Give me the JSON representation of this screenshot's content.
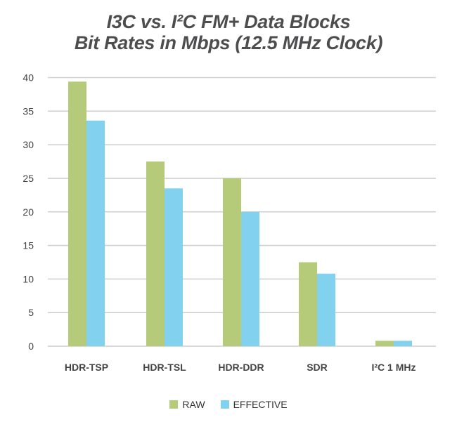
{
  "chart_data": {
    "type": "bar",
    "title": [
      "I3C vs. I²C FM+ Data Blocks",
      "Bit Rates in Mbps (12.5 MHz Clock)"
    ],
    "xlabel": "",
    "ylabel": "",
    "categories": [
      "HDR-TSP",
      "HDR-TSL",
      "HDR-DDR",
      "SDR",
      "I²C 1 MHz"
    ],
    "series": [
      {
        "name": "RAW",
        "color": "#b5cb7a",
        "values": [
          39.4,
          27.5,
          25,
          12.5,
          0.8
        ]
      },
      {
        "name": "EFFECTIVE",
        "color": "#82d1ee",
        "values": [
          33.6,
          23.5,
          20,
          10.8,
          0.8
        ]
      }
    ],
    "ylim": [
      0,
      40
    ],
    "yticks": [
      "0",
      "5",
      "10",
      "15",
      "20",
      "25",
      "30",
      "35",
      "40"
    ],
    "grid": true,
    "legend_placement": "bottom"
  }
}
